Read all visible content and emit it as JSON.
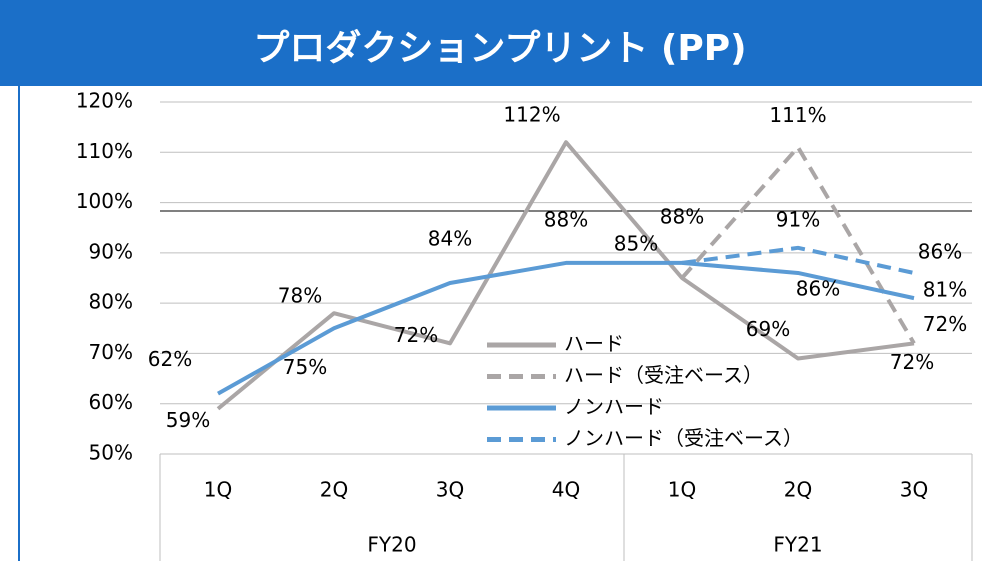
{
  "chart_data": {
    "type": "line",
    "title": "プロダクションプリント (PP)",
    "groups": [
      {
        "name": "FY20",
        "categories": [
          "1Q",
          "2Q",
          "3Q",
          "4Q"
        ]
      },
      {
        "name": "FY21",
        "categories": [
          "1Q",
          "2Q",
          "3Q"
        ]
      }
    ],
    "series": [
      {
        "name": "ハード",
        "color": "#aaa6a6",
        "dash": false,
        "values": [
          59,
          78,
          72,
          112,
          85,
          69,
          72
        ],
        "value_labels": [
          "59%",
          "78%",
          "72%",
          "112%",
          "85%",
          "69%",
          "72%"
        ]
      },
      {
        "name": "ハード（受注ベース）",
        "color": "#aaa6a6",
        "dash": true,
        "values": [
          null,
          null,
          null,
          null,
          85,
          111,
          72
        ],
        "value_labels": [
          null,
          null,
          null,
          null,
          null,
          "111%",
          "72%"
        ]
      },
      {
        "name": "ノンハード",
        "color": "#5b9bd5",
        "dash": false,
        "values": [
          62,
          75,
          84,
          88,
          88,
          86,
          81
        ],
        "value_labels": [
          "62%",
          "75%",
          "84%",
          "88%",
          "88%",
          "86%",
          "81%"
        ]
      },
      {
        "name": "ノンハード（受注ベース）",
        "color": "#5b9bd5",
        "dash": true,
        "values": [
          null,
          null,
          null,
          null,
          88,
          91,
          86
        ],
        "value_labels": [
          null,
          null,
          null,
          null,
          null,
          "91%",
          "86%"
        ]
      }
    ],
    "ylim": [
      50,
      120
    ],
    "yticks": [
      {
        "value": 50,
        "label": "50%"
      },
      {
        "value": 60,
        "label": "60%"
      },
      {
        "value": 70,
        "label": "70%"
      },
      {
        "value": 80,
        "label": "80%"
      },
      {
        "value": 90,
        "label": "90%"
      },
      {
        "value": 100,
        "label": "100%"
      },
      {
        "value": 110,
        "label": "110%"
      },
      {
        "value": 120,
        "label": "120%"
      }
    ],
    "grid": true
  }
}
